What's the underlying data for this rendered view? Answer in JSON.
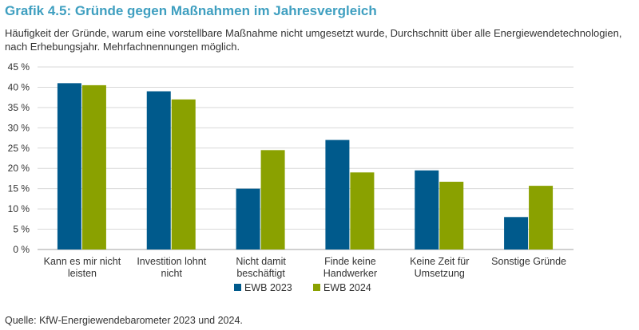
{
  "header": {
    "title": "Grafik 4.5: Gründe gegen Maßnahmen im Jahresvergleich",
    "subtitle": "Häufigkeit der Gründe, warum eine vorstellbare Maßnahme nicht umgesetzt wurde, Durchschnitt über alle Energiewendetechnologien, nach Erhebungsjahr. Mehrfachnennungen möglich."
  },
  "footer": {
    "source": "Quelle: KfW-Energiewendebarometer 2023 und 2024."
  },
  "chart_data": {
    "type": "bar",
    "title": "Grafik 4.5: Gründe gegen Maßnahmen im Jahresvergleich",
    "categories": [
      [
        "Kann es mir nicht",
        "leisten"
      ],
      [
        "Investition lohnt",
        "nicht"
      ],
      [
        "Nicht damit",
        "beschäftigt"
      ],
      [
        "Finde keine",
        "Handwerker"
      ],
      [
        "Keine Zeit für",
        "Umsetzung"
      ],
      [
        "Sonstige Gründe"
      ]
    ],
    "series": [
      {
        "name": "EWB 2023",
        "color": "#005a8c",
        "values": [
          41,
          39,
          15,
          27,
          19.5,
          8
        ]
      },
      {
        "name": "EWB 2024",
        "color": "#8aa100",
        "values": [
          40.5,
          37,
          24.5,
          19,
          16.7,
          15.7
        ]
      }
    ],
    "yticks": [
      "0 %",
      "5 %",
      "10 %",
      "15 %",
      "20 %",
      "25 %",
      "30 %",
      "35 %",
      "40 %",
      "45 %"
    ],
    "ylim": [
      0,
      45
    ],
    "xlabel": "",
    "ylabel": "",
    "grid": true,
    "legend_position": "bottom-center"
  }
}
